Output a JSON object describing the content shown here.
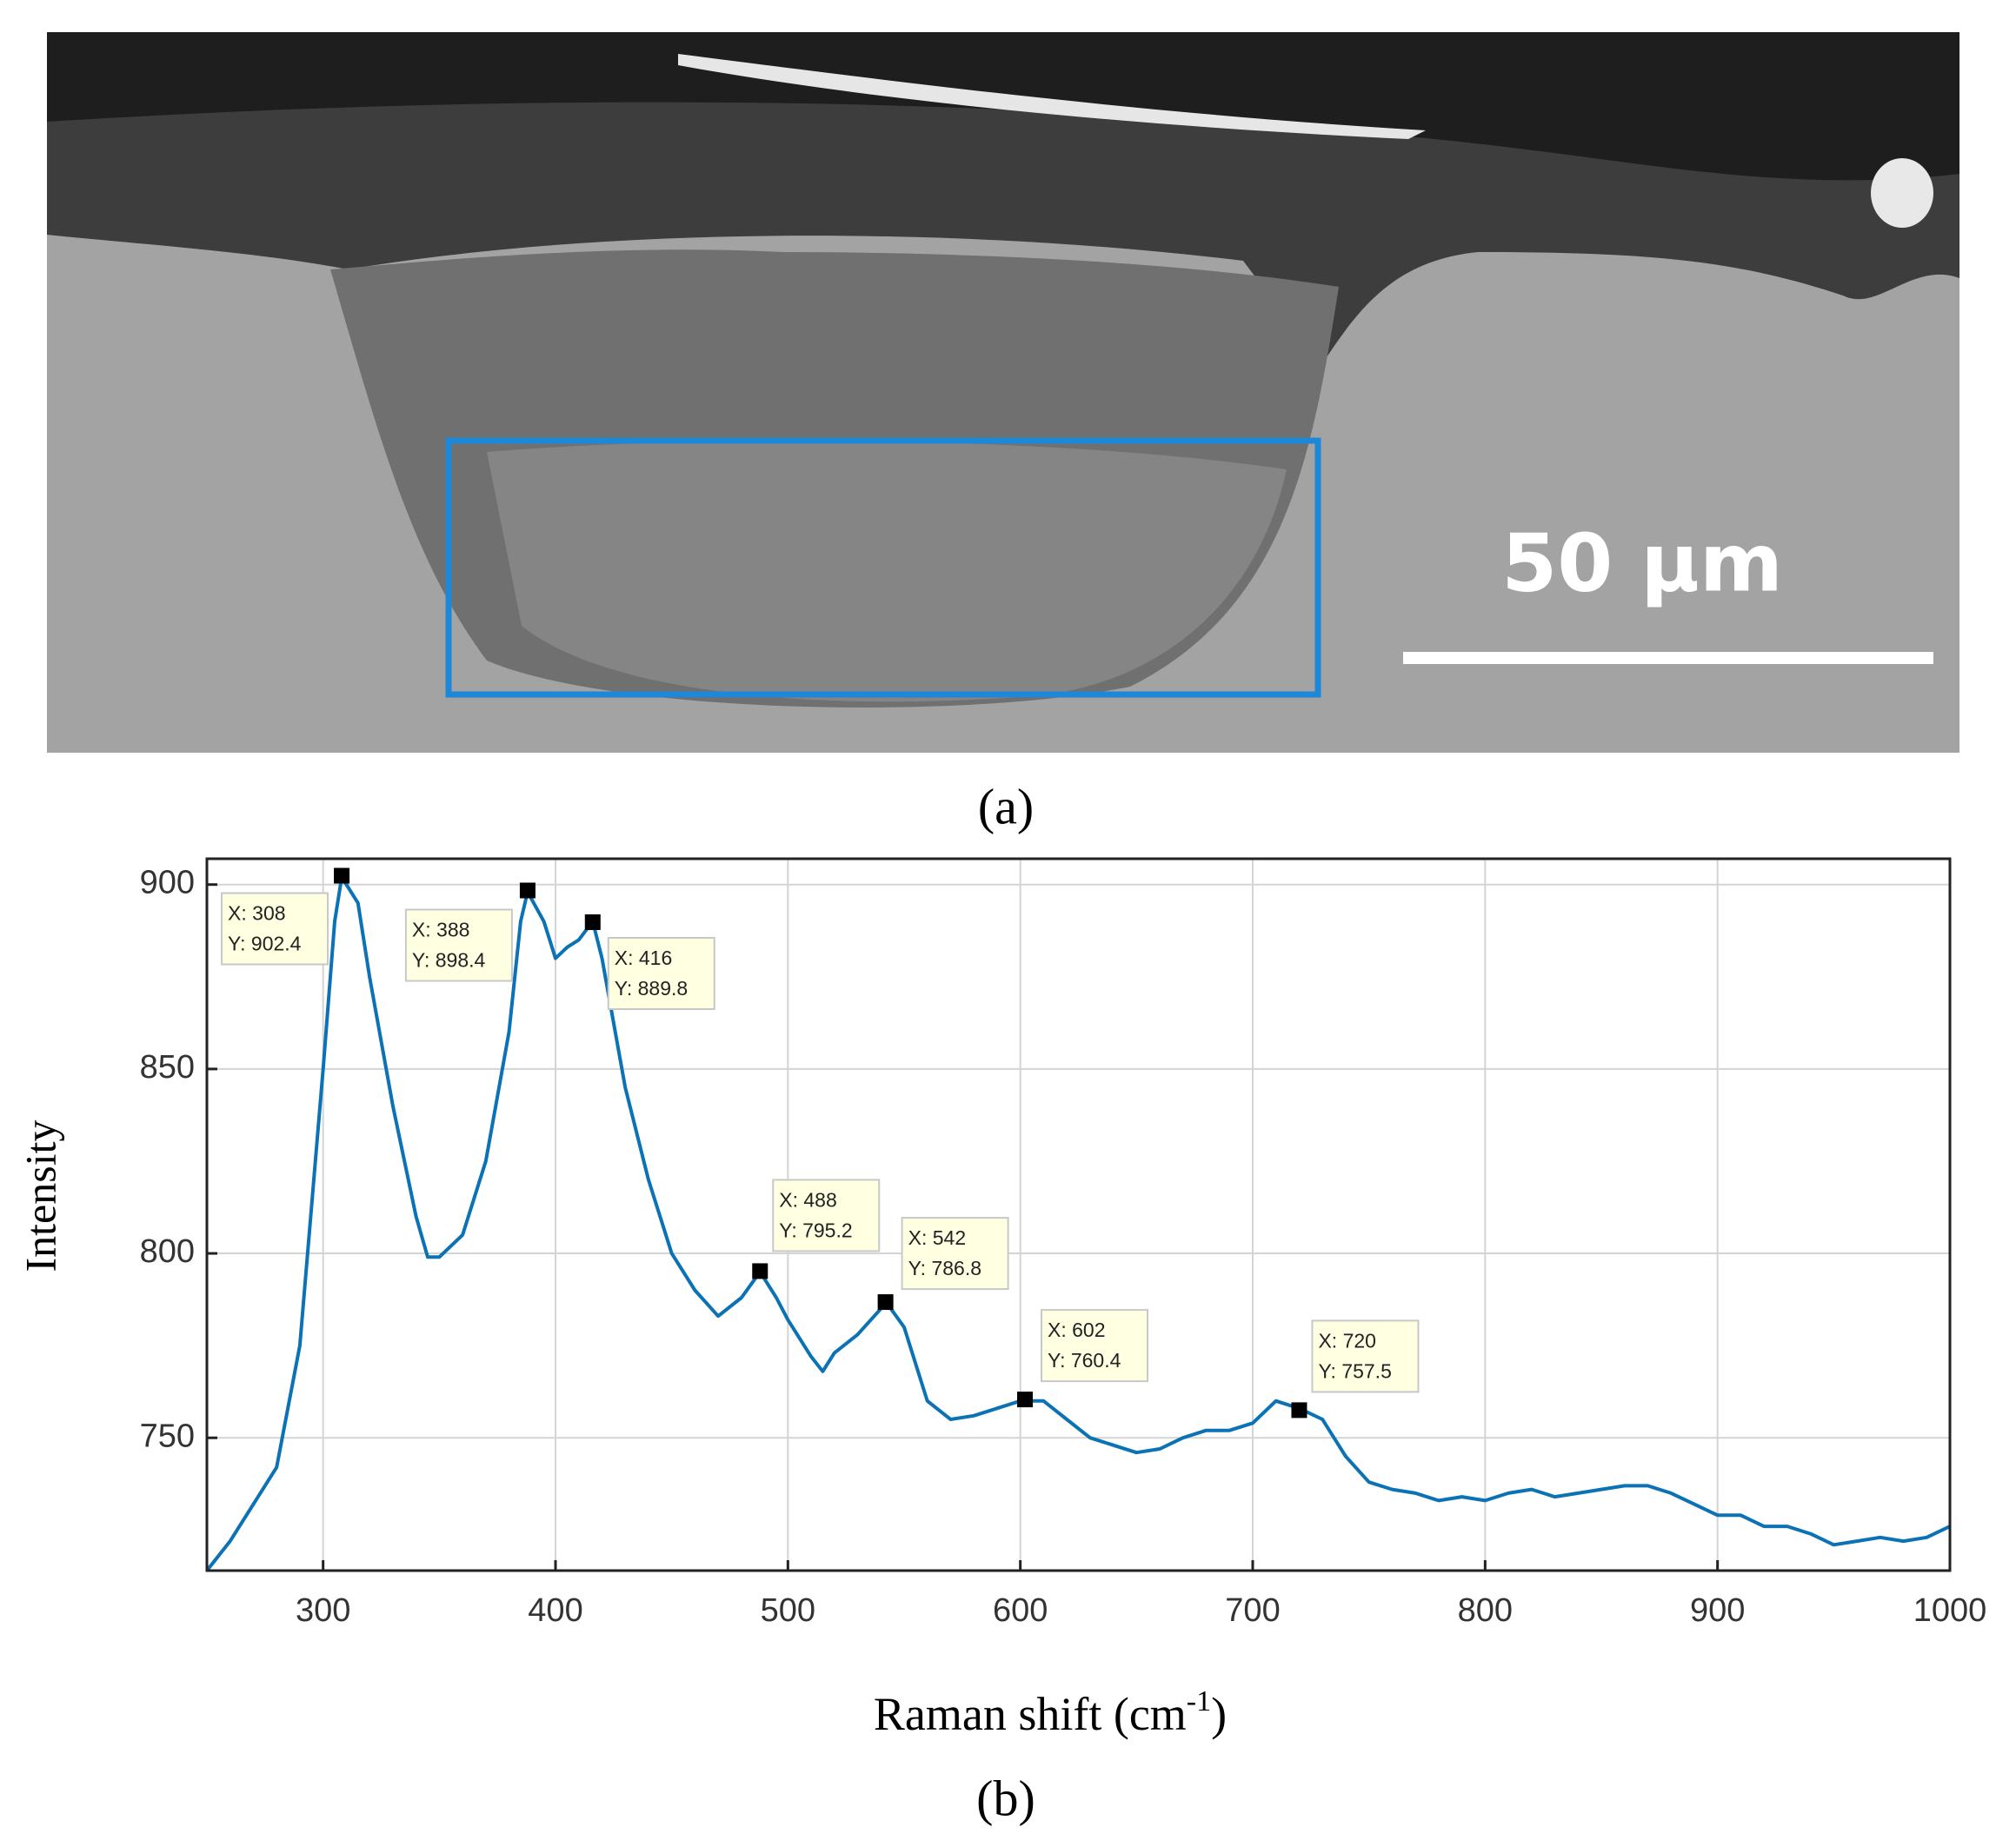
{
  "image": {
    "scale_bar": "50 μm",
    "caption": "(a)"
  },
  "chart_data": {
    "type": "line",
    "caption": "(b)",
    "y_label": "Intensity",
    "x_label": {
      "text": "Raman shift (cm",
      "sup": "-1",
      "end": ")"
    },
    "color": "#0b72b5",
    "grid": true,
    "xlim": [
      250,
      1000
    ],
    "ylim": [
      714,
      907
    ],
    "xticks": [
      300,
      400,
      500,
      600,
      700,
      800,
      900,
      1000
    ],
    "yticks": [
      750,
      800,
      850,
      900
    ],
    "x": [
      250,
      260,
      270,
      280,
      290,
      300,
      305,
      308,
      315,
      320,
      330,
      340,
      345,
      350,
      360,
      370,
      380,
      385,
      388,
      395,
      400,
      405,
      410,
      416,
      420,
      430,
      440,
      450,
      460,
      470,
      480,
      488,
      495,
      500,
      510,
      515,
      520,
      530,
      540,
      542,
      550,
      560,
      570,
      580,
      590,
      600,
      610,
      620,
      630,
      640,
      650,
      660,
      670,
      680,
      690,
      700,
      710,
      720,
      730,
      740,
      750,
      760,
      770,
      780,
      790,
      800,
      810,
      820,
      830,
      840,
      850,
      860,
      870,
      880,
      890,
      900,
      910,
      920,
      930,
      940,
      950,
      960,
      970,
      980,
      990,
      1000
    ],
    "values": [
      714,
      722,
      732,
      742,
      775,
      850,
      890,
      902,
      895,
      875,
      840,
      810,
      799,
      799,
      805,
      825,
      860,
      890,
      898,
      890,
      880,
      883,
      885,
      890,
      880,
      845,
      820,
      800,
      790,
      783,
      788,
      795,
      788,
      782,
      772,
      768,
      773,
      778,
      785,
      787,
      780,
      760,
      755,
      756,
      758,
      760,
      760,
      755,
      750,
      748,
      746,
      747,
      750,
      752,
      752,
      754,
      760,
      758,
      755,
      745,
      738,
      736,
      735,
      733,
      734,
      733,
      735,
      736,
      734,
      735,
      736,
      737,
      737,
      735,
      732,
      729,
      729,
      726,
      726,
      724,
      721,
      722,
      723,
      722,
      723,
      726
    ],
    "annotations": [
      {
        "x": 308,
        "y": 902.4,
        "label_x": "X: 308",
        "label_y": "Y: 902.4"
      },
      {
        "x": 388,
        "y": 898.4,
        "label_x": "X: 388",
        "label_y": "Y: 898.4"
      },
      {
        "x": 416,
        "y": 889.8,
        "label_x": "X: 416",
        "label_y": "Y: 889.8"
      },
      {
        "x": 488,
        "y": 795.2,
        "label_x": "X: 488",
        "label_y": "Y: 795.2"
      },
      {
        "x": 542,
        "y": 786.8,
        "label_x": "X: 542",
        "label_y": "Y: 786.8"
      },
      {
        "x": 602,
        "y": 760.4,
        "label_x": "X: 602",
        "label_y": "Y: 760.4"
      },
      {
        "x": 720,
        "y": 757.5,
        "label_x": "X: 720",
        "label_y": "Y: 757.5"
      }
    ]
  }
}
